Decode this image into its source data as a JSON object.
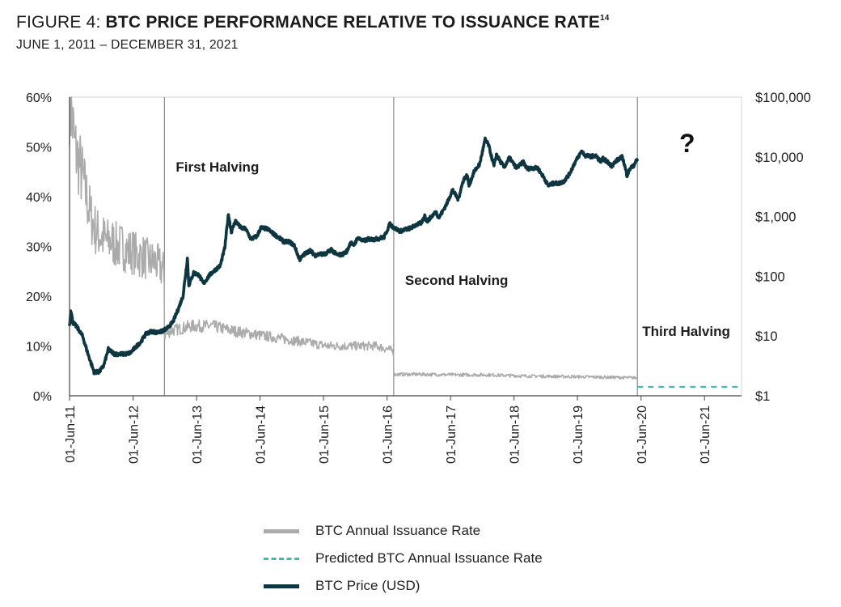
{
  "header": {
    "figure_prefix": "FIGURE 4: ",
    "title": "BTC PRICE PERFORMANCE RELATIVE TO ISSUANCE RATE",
    "footnote": "14",
    "subtitle": "JUNE 1, 2011 – DECEMBER 31, 2021"
  },
  "colors": {
    "issuance": "#ababab",
    "predicted": "#3bbfa8",
    "price": "#0d3641",
    "axis": "#444444",
    "divider": "#8a8a8a"
  },
  "chart_data": {
    "type": "line",
    "x_tick_labels": [
      "01-Jun-11",
      "01-Jun-12",
      "01-Jun-13",
      "01-Jun-14",
      "01-Jun-15",
      "01-Jun-16",
      "01-Jun-17",
      "01-Jun-18",
      "01-Jun-19",
      "01-Jun-20",
      "01-Jun-21"
    ],
    "x_tick_dates": [
      "2011-06-01",
      "2012-06-01",
      "2013-06-01",
      "2014-06-01",
      "2015-06-01",
      "2016-06-01",
      "2017-06-01",
      "2018-06-01",
      "2019-06-01",
      "2020-06-01",
      "2021-06-01"
    ],
    "xlim": [
      "2011-06-01",
      "2021-12-31"
    ],
    "left_axis": {
      "ticks": [
        "0%",
        "10%",
        "20%",
        "30%",
        "40%",
        "50%",
        "60%"
      ],
      "ylim": [
        0,
        60
      ],
      "unit": "%"
    },
    "right_axis": {
      "ticks": [
        "$1",
        "$10",
        "$100",
        "$1,000",
        "$10,000",
        "$100,000"
      ],
      "scale": "log",
      "ylim": [
        1,
        100000
      ]
    },
    "halvings": [
      {
        "label": "First Halving",
        "date": "2012-11-28"
      },
      {
        "label": "Second Halving",
        "date": "2016-07-09"
      },
      {
        "label": "Third Halving",
        "date": "2020-05-11"
      }
    ],
    "question_mark": "?",
    "series": [
      {
        "name": "BTC Annual Issuance Rate",
        "axis": "left",
        "style": "solid",
        "points": [
          [
            "2011-06-01",
            60
          ],
          [
            "2011-06-15",
            56
          ],
          [
            "2011-07-01",
            50
          ],
          [
            "2011-08-01",
            46
          ],
          [
            "2011-09-01",
            41
          ],
          [
            "2011-10-01",
            36
          ],
          [
            "2011-11-01",
            33
          ],
          [
            "2011-12-01",
            32
          ],
          [
            "2012-01-01",
            31
          ],
          [
            "2012-02-01",
            31
          ],
          [
            "2012-03-01",
            30
          ],
          [
            "2012-04-01",
            30
          ],
          [
            "2012-05-01",
            29
          ],
          [
            "2012-06-01",
            29
          ],
          [
            "2012-07-01",
            28
          ],
          [
            "2012-08-01",
            28
          ],
          [
            "2012-09-01",
            27
          ],
          [
            "2012-10-01",
            27
          ],
          [
            "2012-11-01",
            26
          ],
          [
            "2012-11-27",
            25
          ],
          [
            "2012-11-28",
            12
          ],
          [
            "2013-01-01",
            13
          ],
          [
            "2013-03-01",
            13.5
          ],
          [
            "2013-05-01",
            14
          ],
          [
            "2013-07-01",
            14
          ],
          [
            "2013-09-01",
            14
          ],
          [
            "2013-11-01",
            13.5
          ],
          [
            "2014-01-01",
            13
          ],
          [
            "2014-04-01",
            12.5
          ],
          [
            "2014-07-01",
            12
          ],
          [
            "2014-10-01",
            11.5
          ],
          [
            "2015-01-01",
            11
          ],
          [
            "2015-04-01",
            10.5
          ],
          [
            "2015-07-01",
            10
          ],
          [
            "2015-10-01",
            10
          ],
          [
            "2016-01-01",
            10
          ],
          [
            "2016-04-01",
            10
          ],
          [
            "2016-07-08",
            9
          ],
          [
            "2016-07-09",
            4.3
          ],
          [
            "2017-01-01",
            4.3
          ],
          [
            "2017-07-01",
            4.2
          ],
          [
            "2018-01-01",
            4.2
          ],
          [
            "2018-07-01",
            4.0
          ],
          [
            "2019-01-01",
            3.9
          ],
          [
            "2019-07-01",
            3.8
          ],
          [
            "2020-01-01",
            3.7
          ],
          [
            "2020-05-10",
            3.6
          ]
        ]
      },
      {
        "name": "Predicted BTC Annual Issuance Rate",
        "axis": "left",
        "style": "dashed",
        "points": [
          [
            "2020-05-11",
            1.8
          ],
          [
            "2021-12-31",
            1.8
          ]
        ]
      },
      {
        "name": "BTC Price (USD)",
        "axis": "right",
        "style": "solid",
        "points": [
          [
            "2011-06-01",
            15
          ],
          [
            "2011-06-08",
            28
          ],
          [
            "2011-06-20",
            17
          ],
          [
            "2011-07-15",
            14
          ],
          [
            "2011-08-15",
            10
          ],
          [
            "2011-09-15",
            5
          ],
          [
            "2011-10-20",
            2.5
          ],
          [
            "2011-11-18",
            2.5
          ],
          [
            "2011-12-15",
            3.2
          ],
          [
            "2012-01-10",
            6
          ],
          [
            "2012-02-15",
            5
          ],
          [
            "2012-03-15",
            5
          ],
          [
            "2012-04-15",
            5
          ],
          [
            "2012-05-15",
            5.2
          ],
          [
            "2012-06-15",
            6.5
          ],
          [
            "2012-07-15",
            8
          ],
          [
            "2012-08-15",
            11
          ],
          [
            "2012-09-15",
            12
          ],
          [
            "2012-10-15",
            11.5
          ],
          [
            "2012-11-15",
            12
          ],
          [
            "2012-12-15",
            13.5
          ],
          [
            "2013-01-15",
            17
          ],
          [
            "2013-02-15",
            28
          ],
          [
            "2013-03-15",
            47
          ],
          [
            "2013-04-09",
            200
          ],
          [
            "2013-04-17",
            70
          ],
          [
            "2013-05-15",
            115
          ],
          [
            "2013-06-15",
            105
          ],
          [
            "2013-07-10",
            75
          ],
          [
            "2013-08-15",
            105
          ],
          [
            "2013-09-15",
            128
          ],
          [
            "2013-10-15",
            150
          ],
          [
            "2013-11-10",
            300
          ],
          [
            "2013-12-01",
            1100
          ],
          [
            "2013-12-18",
            550
          ],
          [
            "2014-01-10",
            850
          ],
          [
            "2014-02-10",
            650
          ],
          [
            "2014-03-10",
            620
          ],
          [
            "2014-04-10",
            420
          ],
          [
            "2014-05-15",
            470
          ],
          [
            "2014-06-05",
            650
          ],
          [
            "2014-07-15",
            620
          ],
          [
            "2014-08-15",
            520
          ],
          [
            "2014-09-15",
            450
          ],
          [
            "2014-10-15",
            380
          ],
          [
            "2014-11-15",
            380
          ],
          [
            "2014-12-15",
            330
          ],
          [
            "2015-01-14",
            190
          ],
          [
            "2015-02-15",
            240
          ],
          [
            "2015-03-15",
            270
          ],
          [
            "2015-04-15",
            225
          ],
          [
            "2015-05-15",
            237
          ],
          [
            "2015-06-15",
            235
          ],
          [
            "2015-07-15",
            285
          ],
          [
            "2015-08-15",
            230
          ],
          [
            "2015-09-15",
            230
          ],
          [
            "2015-10-15",
            265
          ],
          [
            "2015-11-05",
            380
          ],
          [
            "2015-11-20",
            320
          ],
          [
            "2015-12-15",
            440
          ],
          [
            "2016-01-15",
            390
          ],
          [
            "2016-02-15",
            420
          ],
          [
            "2016-03-15",
            415
          ],
          [
            "2016-04-15",
            430
          ],
          [
            "2016-05-15",
            455
          ],
          [
            "2016-06-17",
            750
          ],
          [
            "2016-07-10",
            650
          ],
          [
            "2016-08-15",
            570
          ],
          [
            "2016-09-15",
            610
          ],
          [
            "2016-10-15",
            640
          ],
          [
            "2016-11-15",
            730
          ],
          [
            "2016-12-15",
            780
          ],
          [
            "2017-01-05",
            1050
          ],
          [
            "2017-01-15",
            820
          ],
          [
            "2017-02-15",
            1030
          ],
          [
            "2017-03-10",
            1200
          ],
          [
            "2017-03-25",
            950
          ],
          [
            "2017-04-15",
            1200
          ],
          [
            "2017-05-15",
            1750
          ],
          [
            "2017-06-12",
            2800
          ],
          [
            "2017-07-15",
            1950
          ],
          [
            "2017-08-15",
            4200
          ],
          [
            "2017-09-05",
            4900
          ],
          [
            "2017-09-15",
            3300
          ],
          [
            "2017-10-15",
            5700
          ],
          [
            "2017-11-15",
            7500
          ],
          [
            "2017-12-17",
            19500
          ],
          [
            "2018-01-05",
            16000
          ],
          [
            "2018-02-06",
            6900
          ],
          [
            "2018-02-20",
            11000
          ],
          [
            "2018-03-15",
            8300
          ],
          [
            "2018-04-06",
            6700
          ],
          [
            "2018-05-05",
            9700
          ],
          [
            "2018-06-15",
            6500
          ],
          [
            "2018-07-25",
            8200
          ],
          [
            "2018-08-15",
            6300
          ],
          [
            "2018-09-15",
            6500
          ],
          [
            "2018-10-15",
            6500
          ],
          [
            "2018-11-20",
            4500
          ],
          [
            "2018-12-15",
            3300
          ],
          [
            "2019-01-15",
            3600
          ],
          [
            "2019-02-15",
            3600
          ],
          [
            "2019-03-15",
            3900
          ],
          [
            "2019-04-15",
            5100
          ],
          [
            "2019-05-15",
            7800
          ],
          [
            "2019-06-26",
            12500
          ],
          [
            "2019-07-15",
            10500
          ],
          [
            "2019-08-15",
            10200
          ],
          [
            "2019-09-15",
            10300
          ],
          [
            "2019-10-15",
            8300
          ],
          [
            "2019-10-26",
            9300
          ],
          [
            "2019-11-15",
            8500
          ],
          [
            "2019-12-15",
            7100
          ],
          [
            "2020-01-15",
            8800
          ],
          [
            "2020-02-15",
            10000
          ],
          [
            "2020-03-12",
            4900
          ],
          [
            "2020-04-01",
            6500
          ],
          [
            "2020-04-15",
            6900
          ],
          [
            "2020-05-10",
            9000
          ]
        ]
      }
    ]
  },
  "legend": [
    {
      "label": "BTC Annual Issuance Rate",
      "style": "solid",
      "color": "#ababab"
    },
    {
      "label": "Predicted BTC Annual Issuance Rate",
      "style": "dashed",
      "color": "#3bbfa8"
    },
    {
      "label": "BTC Price (USD)",
      "style": "solid",
      "color": "#0d3641"
    }
  ]
}
